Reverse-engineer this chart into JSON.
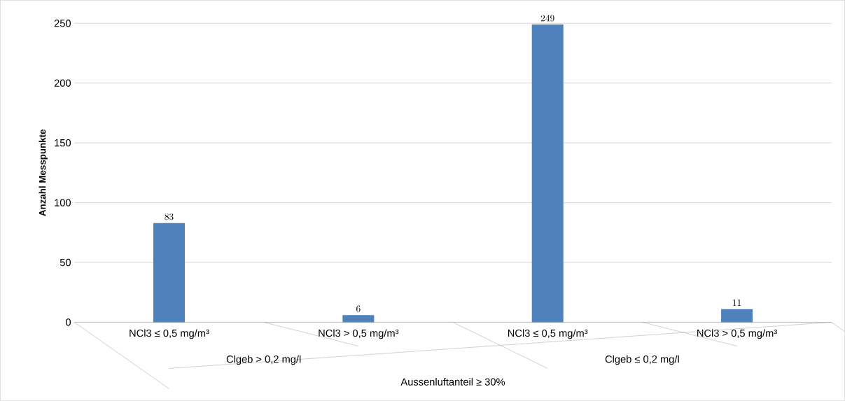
{
  "chart_data": {
    "type": "bar",
    "ylabel": "Anzahl Messpunkte",
    "categories": [
      "NCl3 ≤ 0,5 mg/m³",
      "NCl3 > 0,5 mg/m³",
      "NCl3 ≤ 0,5 mg/m³",
      "NCl3 > 0,5 mg/m³"
    ],
    "values": [
      83,
      6,
      249,
      11
    ],
    "color": "#4f81bd",
    "ylim": [
      0,
      250
    ],
    "yticks": [
      0,
      50,
      100,
      150,
      200,
      250
    ],
    "grid": "y",
    "data_labels": true,
    "annotations": [
      "Clgeb > 0,2 mg/l",
      "Clgeb ≤ 0,2 mg/l",
      "Aussenluftanteil ≥ 30%"
    ]
  }
}
